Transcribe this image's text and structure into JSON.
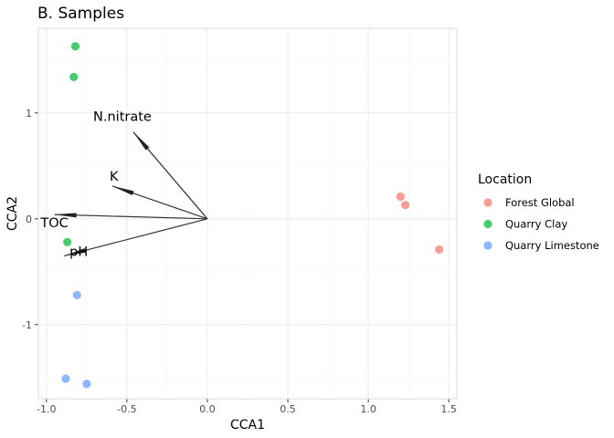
{
  "chart_data": {
    "type": "scatter",
    "title": "B. Samples",
    "xlabel": "CCA1",
    "ylabel": "CCA2",
    "xlim": [
      -1.05,
      1.55
    ],
    "ylim": [
      -1.7,
      1.8
    ],
    "x_ticks": [
      -1.0,
      -0.5,
      0.0,
      0.5,
      1.0,
      1.5
    ],
    "x_tick_labels": [
      "-1.0",
      "-0.5",
      "0.0",
      "0.5",
      "1.0",
      "1.5"
    ],
    "y_ticks": [
      -1,
      0,
      1
    ],
    "y_tick_labels": [
      "-1",
      "0",
      "1"
    ],
    "grid": true,
    "legend": {
      "title": "Location",
      "position": "right",
      "entries": [
        "Forest Global",
        "Quarry Clay",
        "Quarry Limestone"
      ]
    },
    "series": [
      {
        "name": "Forest Global",
        "color": "#F8766D",
        "points": [
          [
            1.2,
            0.21
          ],
          [
            1.23,
            0.13
          ],
          [
            1.44,
            -0.29
          ]
        ]
      },
      {
        "name": "Quarry Clay",
        "color": "#00BA38",
        "points": [
          [
            -0.82,
            1.63
          ],
          [
            -0.83,
            1.34
          ],
          [
            -0.87,
            -0.22
          ]
        ]
      },
      {
        "name": "Quarry Limestone",
        "color": "#619CFF",
        "points": [
          [
            -0.81,
            -0.72
          ],
          [
            -0.88,
            -1.51
          ],
          [
            -0.75,
            -1.56
          ]
        ]
      }
    ],
    "vectors": [
      {
        "label": "N.nitrate",
        "x": -0.46,
        "y": 0.82
      },
      {
        "label": "K",
        "x": -0.59,
        "y": 0.31
      },
      {
        "label": "TOC",
        "x": -0.95,
        "y": 0.04
      },
      {
        "label": "pH",
        "x": -0.89,
        "y": -0.35
      }
    ]
  }
}
